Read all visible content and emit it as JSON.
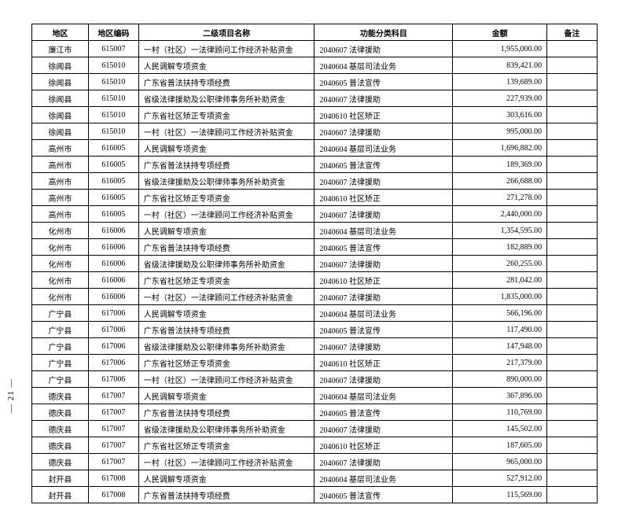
{
  "pageNumber": "— 21 —",
  "headers": {
    "region": "地区",
    "code": "地区编码",
    "project": "二级项目名称",
    "category": "功能分类科目",
    "amount": "金额",
    "remark": "备注"
  },
  "rows": [
    {
      "region": "廉江市",
      "code": "615007",
      "project": "一村（社区）一法律顾问工作经济补贴资金",
      "category": "2040607 法律援助",
      "amount": "1,955,000.00",
      "remark": ""
    },
    {
      "region": "徐闻县",
      "code": "615010",
      "project": "人民调解专项资金",
      "category": "2040604 基层司法业务",
      "amount": "839,421.00",
      "remark": ""
    },
    {
      "region": "徐闻县",
      "code": "615010",
      "project": "广东省普法扶持专项经费",
      "category": "2040605 普法宣传",
      "amount": "139,689.00",
      "remark": ""
    },
    {
      "region": "徐闻县",
      "code": "615010",
      "project": "省级法律援助及公职律师事务所补助资金",
      "category": "2040607 法律援助",
      "amount": "227,939.00",
      "remark": ""
    },
    {
      "region": "徐闻县",
      "code": "615010",
      "project": "广东省社区矫正专项资金",
      "category": "2040610 社区矫正",
      "amount": "303,616.00",
      "remark": ""
    },
    {
      "region": "徐闻县",
      "code": "615010",
      "project": "一村（社区）一法律顾问工作经济补贴资金",
      "category": "2040607 法律援助",
      "amount": "995,000.00",
      "remark": ""
    },
    {
      "region": "高州市",
      "code": "616005",
      "project": "人民调解专项资金",
      "category": "2040604 基层司法业务",
      "amount": "1,696,882.00",
      "remark": ""
    },
    {
      "region": "高州市",
      "code": "616005",
      "project": "广东省普法扶持专项经费",
      "category": "2040605 普法宣传",
      "amount": "189,369.00",
      "remark": ""
    },
    {
      "region": "高州市",
      "code": "616005",
      "project": "省级法律援助及公职律师事务所补助资金",
      "category": "2040607 法律援助",
      "amount": "266,688.00",
      "remark": ""
    },
    {
      "region": "高州市",
      "code": "616005",
      "project": "广东省社区矫正专项资金",
      "category": "2040610 社区矫正",
      "amount": "271,278.00",
      "remark": ""
    },
    {
      "region": "高州市",
      "code": "616005",
      "project": "一村（社区）一法律顾问工作经济补贴资金",
      "category": "2040607 法律援助",
      "amount": "2,440,000.00",
      "remark": ""
    },
    {
      "region": "化州市",
      "code": "616006",
      "project": "人民调解专项资金",
      "category": "2040604 基层司法业务",
      "amount": "1,354,595.00",
      "remark": ""
    },
    {
      "region": "化州市",
      "code": "616006",
      "project": "广东省普法扶持专项经费",
      "category": "2040605 普法宣传",
      "amount": "182,889.00",
      "remark": ""
    },
    {
      "region": "化州市",
      "code": "616006",
      "project": "省级法律援助及公职律师事务所补助资金",
      "category": "2040607 法律援助",
      "amount": "260,255.00",
      "remark": ""
    },
    {
      "region": "化州市",
      "code": "616006",
      "project": "广东省社区矫正专项资金",
      "category": "2040610 社区矫正",
      "amount": "281,042.00",
      "remark": ""
    },
    {
      "region": "化州市",
      "code": "616006",
      "project": "一村（社区）一法律顾问工作经济补贴资金",
      "category": "2040607 法律援助",
      "amount": "1,835,000.00",
      "remark": ""
    },
    {
      "region": "广宁县",
      "code": "617006",
      "project": "人民调解专项资金",
      "category": "2040604 基层司法业务",
      "amount": "566,196.00",
      "remark": ""
    },
    {
      "region": "广宁县",
      "code": "617006",
      "project": "广东省普法扶持专项经费",
      "category": "2040605 普法宣传",
      "amount": "117,490.00",
      "remark": ""
    },
    {
      "region": "广宁县",
      "code": "617006",
      "project": "省级法律援助及公职律师事务所补助资金",
      "category": "2040607 法律援助",
      "amount": "147,948.00",
      "remark": ""
    },
    {
      "region": "广宁县",
      "code": "617006",
      "project": "广东省社区矫正专项资金",
      "category": "2040610 社区矫正",
      "amount": "217,379.00",
      "remark": ""
    },
    {
      "region": "广宁县",
      "code": "617006",
      "project": "一村（社区）一法律顾问工作经济补贴资金",
      "category": "2040607 法律援助",
      "amount": "890,000.00",
      "remark": ""
    },
    {
      "region": "德庆县",
      "code": "617007",
      "project": "人民调解专项资金",
      "category": "2040604 基层司法业务",
      "amount": "367,896.00",
      "remark": ""
    },
    {
      "region": "德庆县",
      "code": "617007",
      "project": "广东省普法扶持专项经费",
      "category": "2040605 普法宣传",
      "amount": "110,769.00",
      "remark": ""
    },
    {
      "region": "德庆县",
      "code": "617007",
      "project": "省级法律援助及公职律师事务所补助资金",
      "category": "2040607 法律援助",
      "amount": "145,502.00",
      "remark": ""
    },
    {
      "region": "德庆县",
      "code": "617007",
      "project": "广东省社区矫正专项资金",
      "category": "2040610 社区矫正",
      "amount": "187,605.00",
      "remark": ""
    },
    {
      "region": "德庆县",
      "code": "617007",
      "project": "一村（社区）一法律顾问工作经济补贴资金",
      "category": "2040607 法律援助",
      "amount": "965,000.00",
      "remark": ""
    },
    {
      "region": "封开县",
      "code": "617008",
      "project": "人民调解专项资金",
      "category": "2040604 基层司法业务",
      "amount": "527,912.00",
      "remark": ""
    },
    {
      "region": "封开县",
      "code": "617008",
      "project": "广东省普法扶持专项经费",
      "category": "2040605 普法宣传",
      "amount": "115,569.00",
      "remark": ""
    }
  ]
}
